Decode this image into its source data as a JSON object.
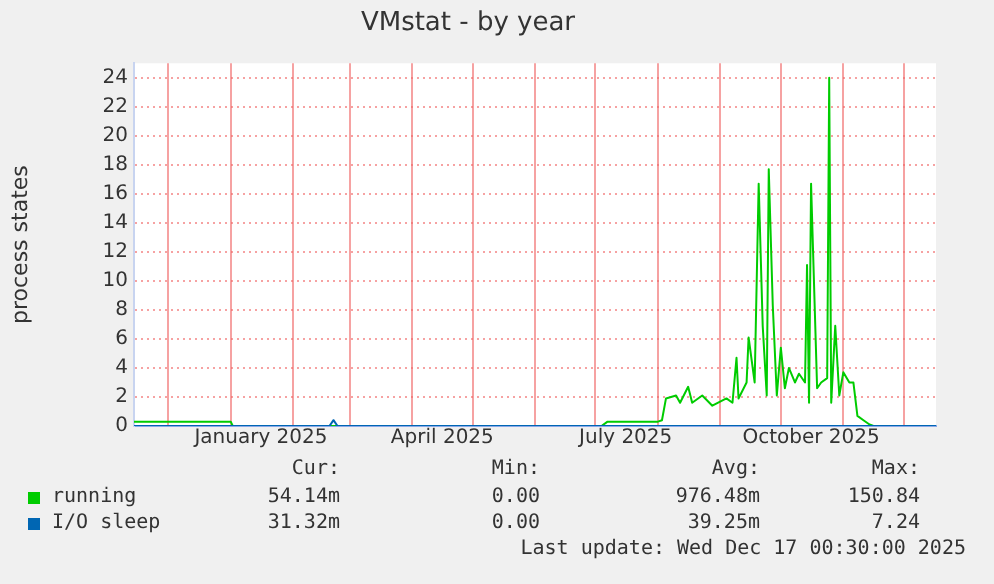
{
  "chart_data": {
    "type": "line",
    "title": "VMstat - by year",
    "ylabel": "process states",
    "xlim": [
      "2024-11-14",
      "2025-12-17"
    ],
    "xticks": [
      {
        "value": "2024-12-01",
        "label": null
      },
      {
        "value": "2025-01-01",
        "label": null
      },
      {
        "value": "2025-01-16",
        "label": "January 2025"
      },
      {
        "value": "2025-02-01",
        "label": null
      },
      {
        "value": "2025-03-01",
        "label": null
      },
      {
        "value": "2025-04-01",
        "label": null
      },
      {
        "value": "2025-04-16",
        "label": "April 2025"
      },
      {
        "value": "2025-05-01",
        "label": null
      },
      {
        "value": "2025-06-01",
        "label": null
      },
      {
        "value": "2025-07-01",
        "label": null
      },
      {
        "value": "2025-07-16",
        "label": "July 2025"
      },
      {
        "value": "2025-08-01",
        "label": null
      },
      {
        "value": "2025-09-01",
        "label": null
      },
      {
        "value": "2025-10-01",
        "label": null
      },
      {
        "value": "2025-10-16",
        "label": "October 2025"
      },
      {
        "value": "2025-11-01",
        "label": null
      },
      {
        "value": "2025-12-01",
        "label": null
      }
    ],
    "ylim": [
      0,
      25
    ],
    "yticks": [
      0,
      2,
      4,
      6,
      8,
      10,
      12,
      14,
      16,
      18,
      20,
      22,
      24
    ],
    "grid": true,
    "legend": "bottom",
    "marker": "none",
    "line_style": "solid",
    "series": [
      {
        "name": "running",
        "color": "#00cc00",
        "x": [
          "2024-11-14",
          "2025-01-01",
          "2025-01-02",
          "2025-07-04",
          "2025-07-07",
          "2025-08-01",
          "2025-08-03",
          "2025-08-05",
          "2025-08-10",
          "2025-08-12",
          "2025-08-16",
          "2025-08-18",
          "2025-08-23",
          "2025-08-28",
          "2025-09-04",
          "2025-09-07",
          "2025-09-09",
          "2025-09-10",
          "2025-09-14",
          "2025-09-15",
          "2025-09-18",
          "2025-09-20",
          "2025-09-22",
          "2025-09-24",
          "2025-09-25",
          "2025-09-27",
          "2025-09-29",
          "2025-10-01",
          "2025-10-03",
          "2025-10-05",
          "2025-10-08",
          "2025-10-10",
          "2025-10-13",
          "2025-10-14",
          "2025-10-15",
          "2025-10-16",
          "2025-10-19",
          "2025-10-21",
          "2025-10-24",
          "2025-10-25",
          "2025-10-26",
          "2025-10-28",
          "2025-10-30",
          "2025-11-01",
          "2025-11-04",
          "2025-11-06",
          "2025-11-08",
          "2025-11-11",
          "2025-11-14",
          "2025-11-16",
          "2025-12-17"
        ],
        "values": [
          0.3,
          0.3,
          0,
          0,
          0.3,
          0.3,
          0.4,
          1.9,
          2.1,
          1.6,
          2.7,
          1.6,
          2.1,
          1.4,
          1.9,
          1.6,
          4.7,
          1.9,
          3,
          6.1,
          3,
          16.7,
          6.9,
          2.1,
          17.7,
          8.3,
          2.1,
          5.4,
          2.6,
          4,
          3,
          3.6,
          3,
          11.1,
          1.6,
          16.7,
          2.6,
          3,
          3.3,
          24,
          1.6,
          6.9,
          2.1,
          3.7,
          3,
          3,
          0.7,
          0.4,
          0.1,
          0,
          0
        ]
      },
      {
        "name": "I/O sleep",
        "color": "#0066b3",
        "x": [
          "2024-11-14",
          "2025-02-19",
          "2025-02-21",
          "2025-02-23",
          "2025-12-17"
        ],
        "values": [
          0,
          0,
          0.4,
          0,
          0
        ]
      }
    ],
    "annotations": [
      "Cur:",
      "Min:",
      "Avg:",
      "Max:",
      "54.14m",
      "0.00",
      "976.48m",
      "150.84",
      "31.32m",
      "0.00",
      "39.25m",
      "7.24",
      "Last update: Wed Dec 17 00:30:00 2025"
    ]
  }
}
